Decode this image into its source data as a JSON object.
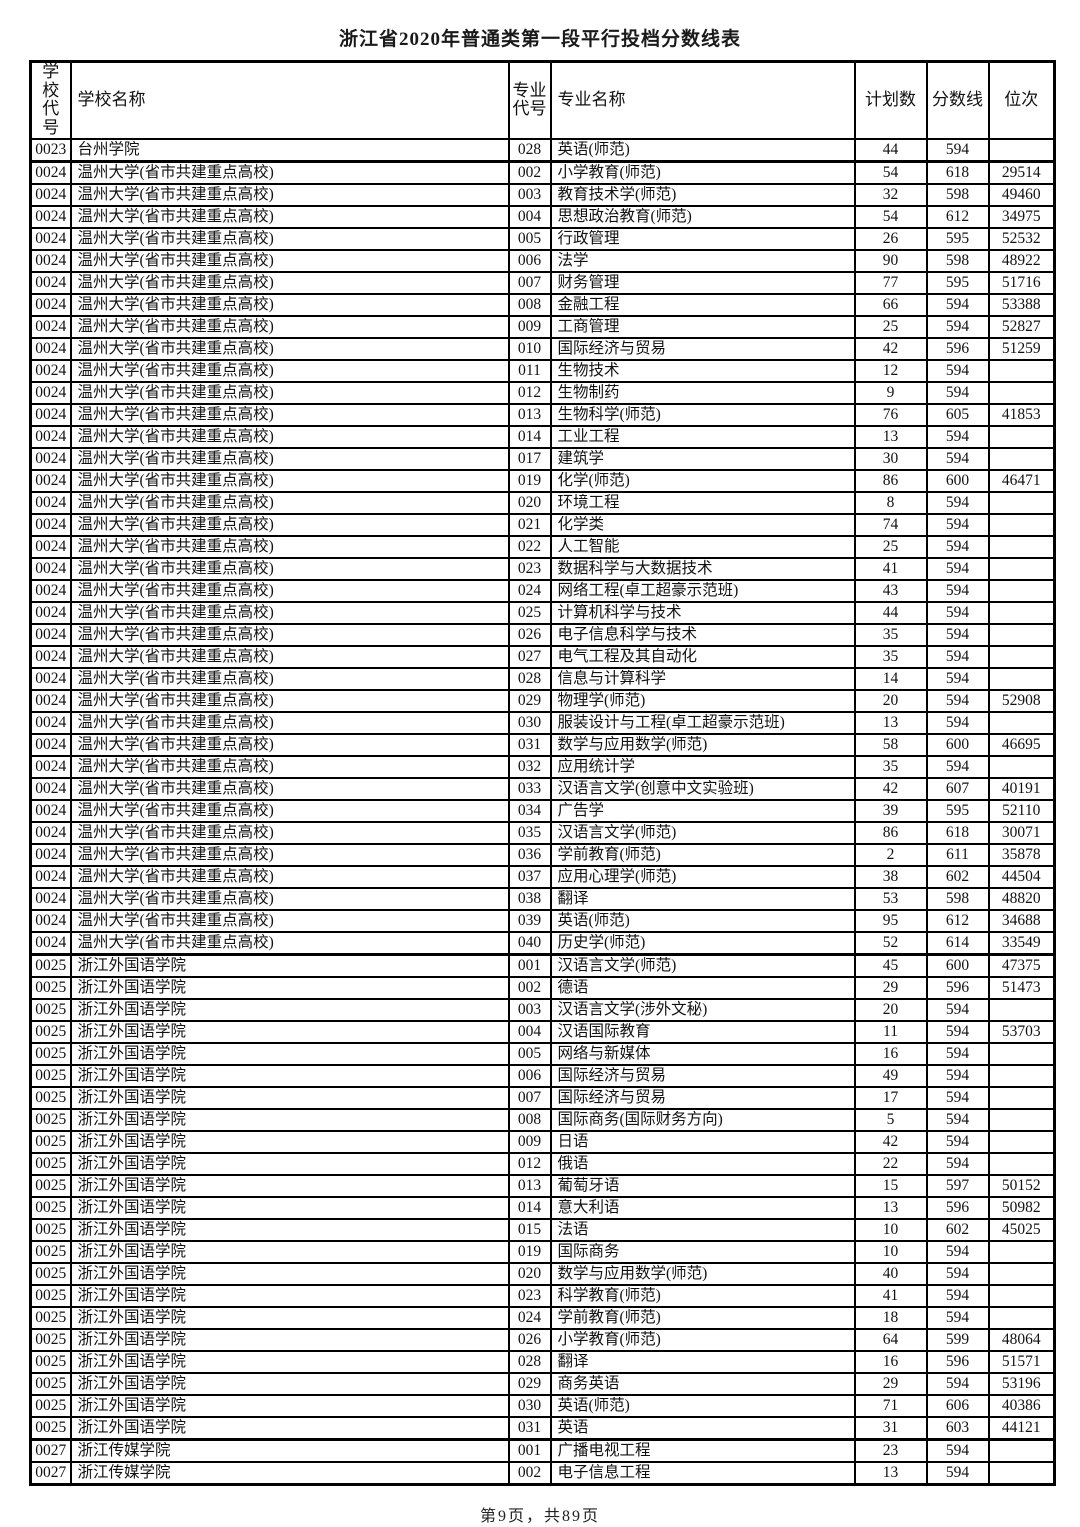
{
  "page": {
    "title": "浙江省2020年普通类第一段平行投档分数线表",
    "footer": "第9页，共89页"
  },
  "table": {
    "col_names": [
      "school-code",
      "school-name",
      "major-code",
      "major-name",
      "plan-count",
      "score-line",
      "rank"
    ],
    "headers": [
      "学校\n代号",
      "学校名称",
      "专业\n代号",
      "专业名称",
      "计划数",
      "分数线",
      "位次"
    ],
    "rows": [
      [
        "0023",
        "台州学院",
        "028",
        "英语(师范)",
        "44",
        "594",
        ""
      ],
      [
        "0024",
        "温州大学(省市共建重点高校)",
        "002",
        "小学教育(师范)",
        "54",
        "618",
        "29514"
      ],
      [
        "0024",
        "温州大学(省市共建重点高校)",
        "003",
        "教育技术学(师范)",
        "32",
        "598",
        "49460"
      ],
      [
        "0024",
        "温州大学(省市共建重点高校)",
        "004",
        "思想政治教育(师范)",
        "54",
        "612",
        "34975"
      ],
      [
        "0024",
        "温州大学(省市共建重点高校)",
        "005",
        "行政管理",
        "26",
        "595",
        "52532"
      ],
      [
        "0024",
        "温州大学(省市共建重点高校)",
        "006",
        "法学",
        "90",
        "598",
        "48922"
      ],
      [
        "0024",
        "温州大学(省市共建重点高校)",
        "007",
        "财务管理",
        "77",
        "595",
        "51716"
      ],
      [
        "0024",
        "温州大学(省市共建重点高校)",
        "008",
        "金融工程",
        "66",
        "594",
        "53388"
      ],
      [
        "0024",
        "温州大学(省市共建重点高校)",
        "009",
        "工商管理",
        "25",
        "594",
        "52827"
      ],
      [
        "0024",
        "温州大学(省市共建重点高校)",
        "010",
        "国际经济与贸易",
        "42",
        "596",
        "51259"
      ],
      [
        "0024",
        "温州大学(省市共建重点高校)",
        "011",
        "生物技术",
        "12",
        "594",
        ""
      ],
      [
        "0024",
        "温州大学(省市共建重点高校)",
        "012",
        "生物制药",
        "9",
        "594",
        ""
      ],
      [
        "0024",
        "温州大学(省市共建重点高校)",
        "013",
        "生物科学(师范)",
        "76",
        "605",
        "41853"
      ],
      [
        "0024",
        "温州大学(省市共建重点高校)",
        "014",
        "工业工程",
        "13",
        "594",
        ""
      ],
      [
        "0024",
        "温州大学(省市共建重点高校)",
        "017",
        "建筑学",
        "30",
        "594",
        ""
      ],
      [
        "0024",
        "温州大学(省市共建重点高校)",
        "019",
        "化学(师范)",
        "86",
        "600",
        "46471"
      ],
      [
        "0024",
        "温州大学(省市共建重点高校)",
        "020",
        "环境工程",
        "8",
        "594",
        ""
      ],
      [
        "0024",
        "温州大学(省市共建重点高校)",
        "021",
        "化学类",
        "74",
        "594",
        ""
      ],
      [
        "0024",
        "温州大学(省市共建重点高校)",
        "022",
        "人工智能",
        "25",
        "594",
        ""
      ],
      [
        "0024",
        "温州大学(省市共建重点高校)",
        "023",
        "数据科学与大数据技术",
        "41",
        "594",
        ""
      ],
      [
        "0024",
        "温州大学(省市共建重点高校)",
        "024",
        "网络工程(卓工超豪示范班)",
        "43",
        "594",
        ""
      ],
      [
        "0024",
        "温州大学(省市共建重点高校)",
        "025",
        "计算机科学与技术",
        "44",
        "594",
        ""
      ],
      [
        "0024",
        "温州大学(省市共建重点高校)",
        "026",
        "电子信息科学与技术",
        "35",
        "594",
        ""
      ],
      [
        "0024",
        "温州大学(省市共建重点高校)",
        "027",
        "电气工程及其自动化",
        "35",
        "594",
        ""
      ],
      [
        "0024",
        "温州大学(省市共建重点高校)",
        "028",
        "信息与计算科学",
        "14",
        "594",
        ""
      ],
      [
        "0024",
        "温州大学(省市共建重点高校)",
        "029",
        "物理学(师范)",
        "20",
        "594",
        "52908"
      ],
      [
        "0024",
        "温州大学(省市共建重点高校)",
        "030",
        "服装设计与工程(卓工超豪示范班)",
        "13",
        "594",
        ""
      ],
      [
        "0024",
        "温州大学(省市共建重点高校)",
        "031",
        "数学与应用数学(师范)",
        "58",
        "600",
        "46695"
      ],
      [
        "0024",
        "温州大学(省市共建重点高校)",
        "032",
        "应用统计学",
        "35",
        "594",
        ""
      ],
      [
        "0024",
        "温州大学(省市共建重点高校)",
        "033",
        "汉语言文学(创意中文实验班)",
        "42",
        "607",
        "40191"
      ],
      [
        "0024",
        "温州大学(省市共建重点高校)",
        "034",
        "广告学",
        "39",
        "595",
        "52110"
      ],
      [
        "0024",
        "温州大学(省市共建重点高校)",
        "035",
        "汉语言文学(师范)",
        "86",
        "618",
        "30071"
      ],
      [
        "0024",
        "温州大学(省市共建重点高校)",
        "036",
        "学前教育(师范)",
        "2",
        "611",
        "35878"
      ],
      [
        "0024",
        "温州大学(省市共建重点高校)",
        "037",
        "应用心理学(师范)",
        "38",
        "602",
        "44504"
      ],
      [
        "0024",
        "温州大学(省市共建重点高校)",
        "038",
        "翻译",
        "53",
        "598",
        "48820"
      ],
      [
        "0024",
        "温州大学(省市共建重点高校)",
        "039",
        "英语(师范)",
        "95",
        "612",
        "34688"
      ],
      [
        "0024",
        "温州大学(省市共建重点高校)",
        "040",
        "历史学(师范)",
        "52",
        "614",
        "33549"
      ],
      [
        "0025",
        "浙江外国语学院",
        "001",
        "汉语言文学(师范)",
        "45",
        "600",
        "47375"
      ],
      [
        "0025",
        "浙江外国语学院",
        "002",
        "德语",
        "29",
        "596",
        "51473"
      ],
      [
        "0025",
        "浙江外国语学院",
        "003",
        "汉语言文学(涉外文秘)",
        "20",
        "594",
        ""
      ],
      [
        "0025",
        "浙江外国语学院",
        "004",
        "汉语国际教育",
        "11",
        "594",
        "53703"
      ],
      [
        "0025",
        "浙江外国语学院",
        "005",
        "网络与新媒体",
        "16",
        "594",
        ""
      ],
      [
        "0025",
        "浙江外国语学院",
        "006",
        "国际经济与贸易",
        "49",
        "594",
        ""
      ],
      [
        "0025",
        "浙江外国语学院",
        "007",
        "国际经济与贸易",
        "17",
        "594",
        ""
      ],
      [
        "0025",
        "浙江外国语学院",
        "008",
        "国际商务(国际财务方向)",
        "5",
        "594",
        ""
      ],
      [
        "0025",
        "浙江外国语学院",
        "009",
        "日语",
        "42",
        "594",
        ""
      ],
      [
        "0025",
        "浙江外国语学院",
        "012",
        "俄语",
        "22",
        "594",
        ""
      ],
      [
        "0025",
        "浙江外国语学院",
        "013",
        "葡萄牙语",
        "15",
        "597",
        "50152"
      ],
      [
        "0025",
        "浙江外国语学院",
        "014",
        "意大利语",
        "13",
        "596",
        "50982"
      ],
      [
        "0025",
        "浙江外国语学院",
        "015",
        "法语",
        "10",
        "602",
        "45025"
      ],
      [
        "0025",
        "浙江外国语学院",
        "019",
        "国际商务",
        "10",
        "594",
        ""
      ],
      [
        "0025",
        "浙江外国语学院",
        "020",
        "数学与应用数学(师范)",
        "40",
        "594",
        ""
      ],
      [
        "0025",
        "浙江外国语学院",
        "023",
        "科学教育(师范)",
        "41",
        "594",
        ""
      ],
      [
        "0025",
        "浙江外国语学院",
        "024",
        "学前教育(师范)",
        "18",
        "594",
        ""
      ],
      [
        "0025",
        "浙江外国语学院",
        "026",
        "小学教育(师范)",
        "64",
        "599",
        "48064"
      ],
      [
        "0025",
        "浙江外国语学院",
        "028",
        "翻译",
        "16",
        "596",
        "51571"
      ],
      [
        "0025",
        "浙江外国语学院",
        "029",
        "商务英语",
        "29",
        "594",
        "53196"
      ],
      [
        "0025",
        "浙江外国语学院",
        "030",
        "英语(师范)",
        "71",
        "606",
        "40386"
      ],
      [
        "0025",
        "浙江外国语学院",
        "031",
        "英语",
        "31",
        "603",
        "44121"
      ],
      [
        "0027",
        "浙江传媒学院",
        "001",
        "广播电视工程",
        "23",
        "594",
        ""
      ],
      [
        "0027",
        "浙江传媒学院",
        "002",
        "电子信息工程",
        "13",
        "594",
        ""
      ]
    ]
  }
}
